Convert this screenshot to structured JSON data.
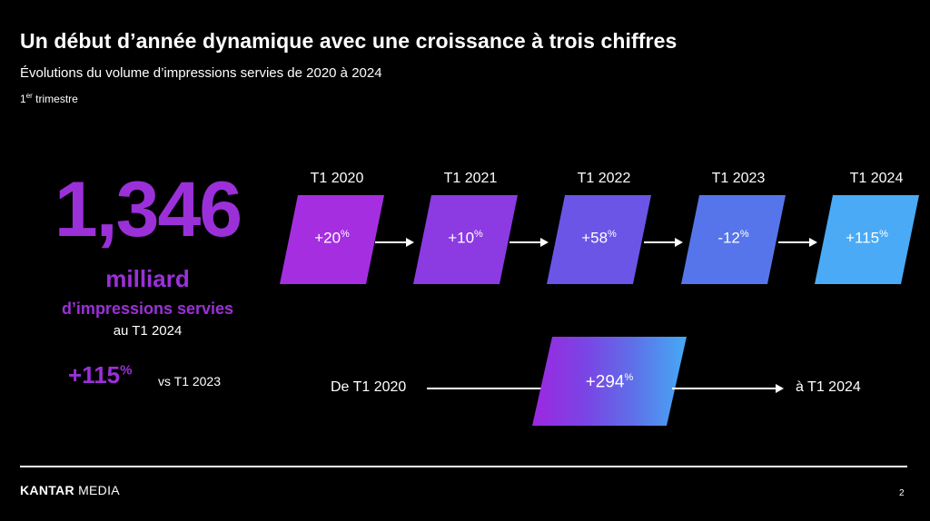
{
  "title": "Un début d’année dynamique avec une croissance à trois chiffres",
  "subtitle": "Évolutions du volume d’impressions servies de 2020 à 2024",
  "period": {
    "number": "1",
    "suffix": "er",
    "text": " trimestre"
  },
  "kpi": {
    "value": "1,346",
    "unit": "milliard",
    "description": "d’impressions servies",
    "period": "au T1 2024",
    "growth": "+115",
    "growth_suffix": "%",
    "compare": "vs T1 2023"
  },
  "quarters": [
    {
      "label": "T1 2020",
      "value": "+20",
      "suffix": "%",
      "color": "#a52fe0"
    },
    {
      "label": "T1 2021",
      "value": "+10",
      "suffix": "%",
      "color": "#8c3ae2"
    },
    {
      "label": "T1 2022",
      "value": "+58",
      "suffix": "%",
      "color": "#6b55e6"
    },
    {
      "label": "T1 2023",
      "value": "-12",
      "suffix": "%",
      "color": "#5675ea"
    },
    {
      "label": "T1 2024",
      "value": "+115",
      "suffix": "%",
      "color": "#4aaaf5"
    }
  ],
  "total": {
    "from_label": "De T1 2020",
    "to_label": "à T1 2024",
    "value": "+294",
    "suffix": "%"
  },
  "footer": {
    "brand_bold": "KANTAR",
    "brand_rest": " MEDIA",
    "page": "2"
  }
}
